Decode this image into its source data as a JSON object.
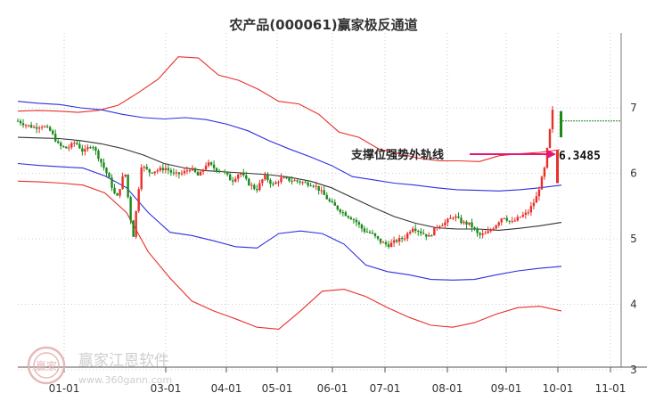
{
  "chart_data": {
    "type": "candlestick",
    "title": "农产品(000061)赢家极反通道",
    "x_ticks": [
      "01-01",
      "03-01",
      "04-01",
      "05-01",
      "06-01",
      "07-01",
      "08-01",
      "09-01",
      "10-01",
      "11-01"
    ],
    "y_ticks": [
      "3",
      "4",
      "5",
      "6",
      "7"
    ],
    "ylim": [
      3,
      7.2
    ],
    "annotation": {
      "label": "支撑位强势外轨线",
      "value": "6.3485"
    },
    "series": {
      "close": [
        6.8,
        6.74,
        6.7,
        6.73,
        6.64,
        6.42,
        6.38,
        6.48,
        6.32,
        6.45,
        6.2,
        5.95,
        5.6,
        6.05,
        5.0,
        6.12,
        6.02,
        6.05,
        6.08,
        5.98,
        6.0,
        6.08,
        5.95,
        6.16,
        6.07,
        6.03,
        5.88,
        6.02,
        5.85,
        5.75,
        5.96,
        5.82,
        5.92,
        5.9,
        5.88,
        5.85,
        5.83,
        5.7,
        5.55,
        5.45,
        5.36,
        5.28,
        5.13,
        5.08,
        4.96,
        4.9,
        4.97,
        5.02,
        5.18,
        5.1,
        5.03,
        5.2,
        5.25,
        5.35,
        5.25,
        5.22,
        5.05,
        5.08,
        5.2,
        5.35,
        5.24,
        5.33,
        5.4,
        5.62,
        6.05,
        6.95
      ],
      "upper_red": [
        6.95,
        6.96,
        6.95,
        6.93,
        6.96,
        7.04,
        7.23,
        7.44,
        7.78,
        7.76,
        7.5,
        7.42,
        7.28,
        7.1,
        7.06,
        6.9,
        6.63,
        6.55,
        6.37,
        6.3,
        6.23,
        6.19,
        6.19,
        6.18,
        6.27,
        6.3,
        6.32,
        6.36
      ],
      "upper_blue": [
        7.1,
        7.07,
        7.05,
        7.0,
        6.97,
        6.9,
        6.85,
        6.83,
        6.85,
        6.82,
        6.75,
        6.65,
        6.5,
        6.37,
        6.25,
        6.12,
        5.95,
        5.9,
        5.85,
        5.82,
        5.78,
        5.75,
        5.74,
        5.73,
        5.75,
        5.78,
        5.82
      ],
      "middle": [
        6.55,
        6.54,
        6.53,
        6.5,
        6.45,
        6.38,
        6.28,
        6.15,
        6.08,
        6.04,
        6.02,
        6.0,
        5.98,
        5.94,
        5.88,
        5.78,
        5.63,
        5.48,
        5.34,
        5.24,
        5.17,
        5.15,
        5.15,
        5.13,
        5.16,
        5.2,
        5.25
      ],
      "lower_blue": [
        6.15,
        6.12,
        6.1,
        6.08,
        5.96,
        5.78,
        5.4,
        5.1,
        5.05,
        4.97,
        4.88,
        4.86,
        5.08,
        5.12,
        5.08,
        4.92,
        4.6,
        4.5,
        4.45,
        4.38,
        4.37,
        4.38,
        4.45,
        4.51,
        4.55,
        4.58
      ],
      "lower_red": [
        5.88,
        5.87,
        5.85,
        5.82,
        5.7,
        5.4,
        4.8,
        4.4,
        4.05,
        3.9,
        3.78,
        3.65,
        3.62,
        3.9,
        4.2,
        4.23,
        4.12,
        3.95,
        3.8,
        3.68,
        3.65,
        3.72,
        3.85,
        3.95,
        3.97,
        3.9
      ]
    }
  },
  "watermark": {
    "logo_text": "赢家",
    "brand": "赢家江恩软件",
    "url": "www.360gann.com"
  }
}
